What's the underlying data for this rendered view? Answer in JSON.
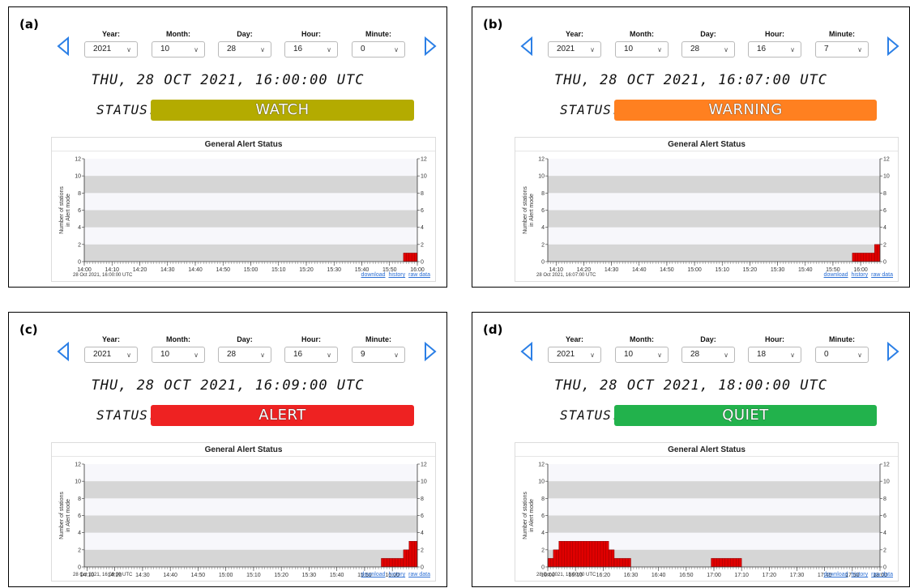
{
  "field_labels": {
    "year": "Year:",
    "month": "Month:",
    "day": "Day:",
    "hour": "Hour:",
    "minute": "Minute:"
  },
  "status_label": "STATUS:",
  "chart_common": {
    "title": "General Alert Status",
    "ylabel_line1": "Number of stations",
    "ylabel_line2": "in Alert mode",
    "links": {
      "download": "download",
      "history": "history",
      "raw_data": "raw data"
    },
    "bar_color": "#e00000"
  },
  "panels": [
    {
      "label": "(a)",
      "year": "2021",
      "month": "10",
      "day": "28",
      "hour": "16",
      "minute": "0",
      "datetime": "THU, 28 OCT 2021, 16:00:00 UTC",
      "status": "WATCH",
      "status_color": "#b4ab00",
      "footer": "28 Oct 2021, 16:00:00 UTC",
      "x_ticks": [
        "14:00",
        "14:10",
        "14:20",
        "14:30",
        "14:40",
        "14:50",
        "15:00",
        "15:10",
        "15:20",
        "15:30",
        "15:40",
        "15:50",
        "16:00"
      ]
    },
    {
      "label": "(b)",
      "year": "2021",
      "month": "10",
      "day": "28",
      "hour": "16",
      "minute": "7",
      "datetime": "THU, 28 OCT 2021, 16:07:00 UTC",
      "status": "WARNING",
      "status_color": "#ff8020",
      "footer": "28 Oct 2021, 16:07:00 UTC",
      "x_ticks": [
        "14:10",
        "14:20",
        "14:30",
        "14:40",
        "14:50",
        "15:00",
        "15:10",
        "15:20",
        "15:30",
        "15:40",
        "15:50",
        "16:00"
      ]
    },
    {
      "label": "(c)",
      "year": "2021",
      "month": "10",
      "day": "28",
      "hour": "16",
      "minute": "9",
      "datetime": "THU, 28 OCT 2021, 16:09:00 UTC",
      "status": "ALERT",
      "status_color": "#ee2222",
      "footer": "28 Oct 2021, 16:09:00 UTC",
      "x_ticks": [
        "14:10",
        "14:20",
        "14:30",
        "14:40",
        "14:50",
        "15:00",
        "15:10",
        "15:20",
        "15:30",
        "15:40",
        "15:50",
        "16:00",
        "16:10"
      ]
    },
    {
      "label": "(d)",
      "year": "2021",
      "month": "10",
      "day": "28",
      "hour": "18",
      "minute": "0",
      "datetime": "THU, 28 OCT 2021, 18:00:00 UTC",
      "status": "QUIET",
      "status_color": "#22b24c",
      "footer": "28 Oct 2021, 18:00:00 UTC",
      "x_ticks": [
        "16:00",
        "16:10",
        "16:20",
        "16:30",
        "16:40",
        "16:50",
        "17:00",
        "17:10",
        "17:20",
        "17:30",
        "17:40",
        "17:50",
        "18:00"
      ]
    }
  ],
  "chart_data": [
    {
      "type": "bar",
      "title": "General Alert Status",
      "ylabel": "Number of stations in Alert mode",
      "ylim": [
        0,
        12
      ],
      "y_ticks": [
        0,
        2,
        4,
        6,
        8,
        10,
        12
      ],
      "x_range": [
        "14:00",
        "16:00"
      ],
      "bars": [
        {
          "start": "15:55",
          "end": "16:00",
          "value": 1
        }
      ]
    },
    {
      "type": "bar",
      "title": "General Alert Status",
      "ylabel": "Number of stations in Alert mode",
      "ylim": [
        0,
        12
      ],
      "y_ticks": [
        0,
        2,
        4,
        6,
        8,
        10,
        12
      ],
      "x_range": [
        "14:07",
        "16:07"
      ],
      "bars": [
        {
          "start": "15:57",
          "end": "16:05",
          "value": 1
        },
        {
          "start": "16:05",
          "end": "16:07",
          "value": 2
        }
      ]
    },
    {
      "type": "bar",
      "title": "General Alert Status",
      "ylabel": "Number of stations in Alert mode",
      "ylim": [
        0,
        12
      ],
      "y_ticks": [
        0,
        2,
        4,
        6,
        8,
        10,
        12
      ],
      "x_range": [
        "14:09",
        "16:09"
      ],
      "bars": [
        {
          "start": "15:56",
          "end": "16:04",
          "value": 1
        },
        {
          "start": "16:04",
          "end": "16:06",
          "value": 2
        },
        {
          "start": "16:06",
          "end": "16:09",
          "value": 3
        }
      ]
    },
    {
      "type": "bar",
      "title": "General Alert Status",
      "ylabel": "Number of stations in Alert mode",
      "ylim": [
        0,
        12
      ],
      "y_ticks": [
        0,
        2,
        4,
        6,
        8,
        10,
        12
      ],
      "x_range": [
        "16:00",
        "18:00"
      ],
      "bars": [
        {
          "start": "16:00",
          "end": "16:02",
          "value": 1
        },
        {
          "start": "16:02",
          "end": "16:04",
          "value": 2
        },
        {
          "start": "16:04",
          "end": "16:22",
          "value": 3
        },
        {
          "start": "16:22",
          "end": "16:24",
          "value": 2
        },
        {
          "start": "16:24",
          "end": "16:30",
          "value": 1
        },
        {
          "start": "16:59",
          "end": "17:10",
          "value": 1
        }
      ]
    }
  ]
}
